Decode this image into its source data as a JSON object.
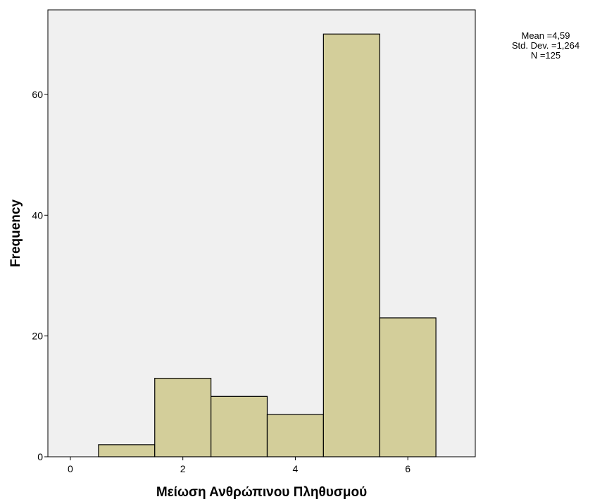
{
  "chart_data": {
    "type": "histogram",
    "title": "",
    "xlabel": "Μείωση Ανθρώπινου Πληθυσμού",
    "ylabel": "Frequency",
    "xlim": [
      -0.4,
      7.2
    ],
    "ylim": [
      0,
      74
    ],
    "x_ticks": [
      0,
      2,
      4,
      6
    ],
    "y_ticks": [
      0,
      20,
      40,
      60
    ],
    "bins": [
      {
        "start": 0.5,
        "end": 1.5,
        "value": 2
      },
      {
        "start": 1.5,
        "end": 2.5,
        "value": 13
      },
      {
        "start": 2.5,
        "end": 3.5,
        "value": 10
      },
      {
        "start": 3.5,
        "end": 4.5,
        "value": 7
      },
      {
        "start": 4.5,
        "end": 5.5,
        "value": 70
      },
      {
        "start": 5.5,
        "end": 6.5,
        "value": 23
      }
    ],
    "grid": false,
    "legend": "none",
    "colors": {
      "plot_background": "#f0f0f0",
      "bar_fill": "#d3ce9a",
      "bar_stroke": "#000000"
    }
  },
  "stats": {
    "mean": "Mean =4,59",
    "std_dev": "Std. Dev. =1,264",
    "n": "N =125"
  }
}
